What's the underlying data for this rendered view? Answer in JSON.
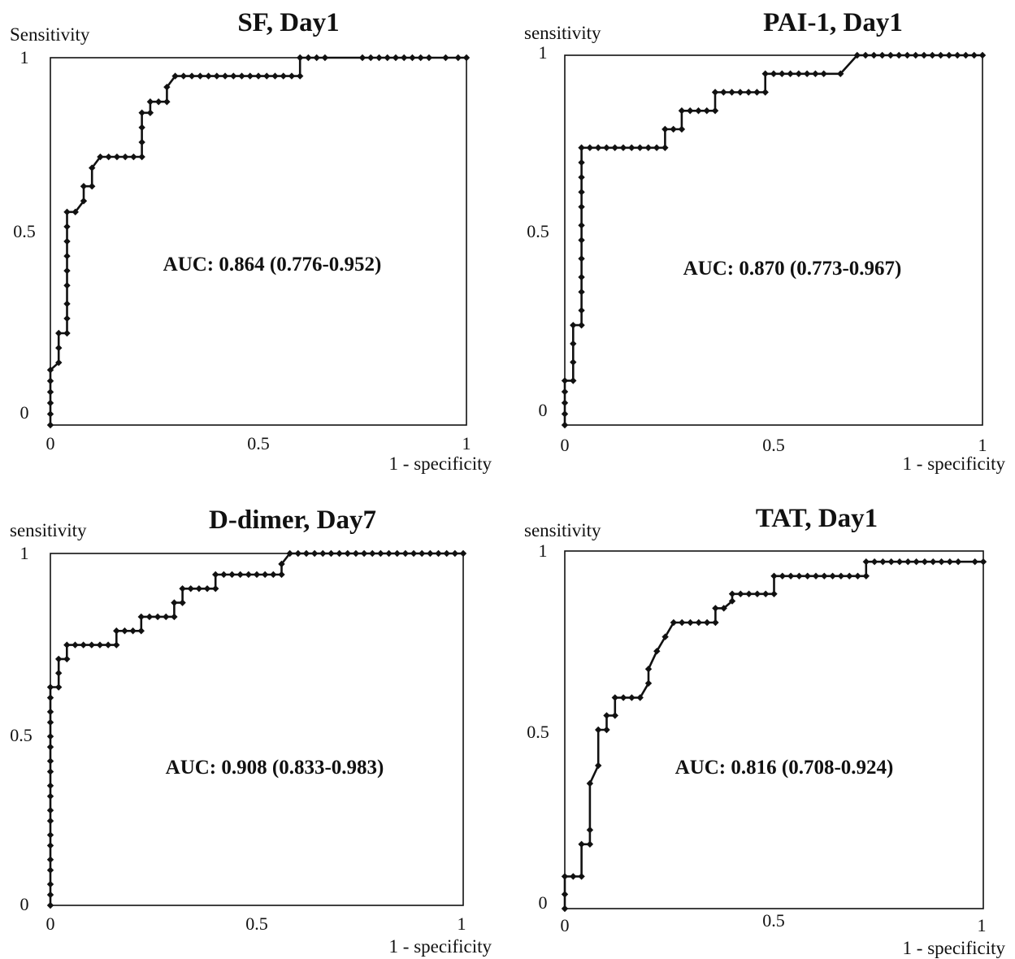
{
  "chart_data": [
    {
      "type": "line",
      "title": "SF, Day1",
      "ylabel": "Sensitivity",
      "xlabel": "1 - specificity",
      "annotation": "AUC: 0.864 (0.776-0.952)",
      "xlim": [
        0,
        1
      ],
      "ylim": [
        0,
        1
      ],
      "x_ticks": [
        "0",
        "0.5",
        "1"
      ],
      "y_ticks": [
        "0",
        "0.5",
        "1"
      ],
      "series": [
        {
          "x": [
            0,
            0,
            0,
            0,
            0,
            0,
            0.02,
            0.02,
            0.02,
            0.04,
            0.04,
            0.04,
            0.04,
            0.04,
            0.04,
            0.04,
            0.04,
            0.04,
            0.06,
            0.08,
            0.08,
            0.1,
            0.1,
            0.12,
            0.14,
            0.16,
            0.18,
            0.2,
            0.22,
            0.22,
            0.22,
            0.22,
            0.24,
            0.24,
            0.26,
            0.28,
            0.28,
            0.3,
            0.32,
            0.34,
            0.36,
            0.38,
            0.4,
            0.42,
            0.44,
            0.46,
            0.48,
            0.5,
            0.52,
            0.54,
            0.56,
            0.58,
            0.6,
            0.6,
            0.62,
            0.64,
            0.66,
            0.75,
            0.77,
            0.79,
            0.81,
            0.83,
            0.85,
            0.87,
            0.89,
            0.91,
            0.95,
            0.98,
            1
          ],
          "y": [
            0,
            0.03,
            0.06,
            0.09,
            0.12,
            0.15,
            0.17,
            0.21,
            0.25,
            0.25,
            0.29,
            0.33,
            0.38,
            0.42,
            0.46,
            0.5,
            0.54,
            0.58,
            0.58,
            0.61,
            0.65,
            0.65,
            0.7,
            0.73,
            0.73,
            0.73,
            0.73,
            0.73,
            0.73,
            0.77,
            0.81,
            0.85,
            0.85,
            0.88,
            0.88,
            0.88,
            0.92,
            0.95,
            0.95,
            0.95,
            0.95,
            0.95,
            0.95,
            0.95,
            0.95,
            0.95,
            0.95,
            0.95,
            0.95,
            0.95,
            0.95,
            0.95,
            0.95,
            1,
            1,
            1,
            1,
            1,
            1,
            1,
            1,
            1,
            1,
            1,
            1,
            1,
            1,
            1,
            1
          ]
        }
      ]
    },
    {
      "type": "line",
      "title": "PAI-1, Day1",
      "ylabel": "sensitivity",
      "xlabel": "1 - specificity",
      "annotation": "AUC: 0.870 (0.773-0.967)",
      "xlim": [
        0,
        1
      ],
      "ylim": [
        0,
        1
      ],
      "x_ticks": [
        "0",
        "0.5",
        "1"
      ],
      "y_ticks": [
        "0",
        "0.5",
        "1"
      ],
      "series": [
        {
          "x": [
            0,
            0,
            0,
            0,
            0,
            0.02,
            0.02,
            0.02,
            0.02,
            0.04,
            0.04,
            0.04,
            0.04,
            0.04,
            0.04,
            0.04,
            0.04,
            0.04,
            0.04,
            0.04,
            0.04,
            0.06,
            0.08,
            0.1,
            0.12,
            0.14,
            0.16,
            0.18,
            0.2,
            0.22,
            0.24,
            0.24,
            0.26,
            0.28,
            0.28,
            0.3,
            0.32,
            0.34,
            0.36,
            0.36,
            0.38,
            0.4,
            0.42,
            0.44,
            0.46,
            0.48,
            0.48,
            0.5,
            0.52,
            0.54,
            0.56,
            0.58,
            0.6,
            0.62,
            0.66,
            0.7,
            0.72,
            0.74,
            0.76,
            0.78,
            0.8,
            0.82,
            0.84,
            0.86,
            0.88,
            0.9,
            0.92,
            0.94,
            0.96,
            0.98,
            1
          ],
          "y": [
            0,
            0.03,
            0.06,
            0.09,
            0.12,
            0.12,
            0.17,
            0.22,
            0.27,
            0.27,
            0.31,
            0.36,
            0.4,
            0.45,
            0.5,
            0.54,
            0.59,
            0.63,
            0.67,
            0.71,
            0.75,
            0.75,
            0.75,
            0.75,
            0.75,
            0.75,
            0.75,
            0.75,
            0.75,
            0.75,
            0.75,
            0.8,
            0.8,
            0.8,
            0.85,
            0.85,
            0.85,
            0.85,
            0.85,
            0.9,
            0.9,
            0.9,
            0.9,
            0.9,
            0.9,
            0.9,
            0.95,
            0.95,
            0.95,
            0.95,
            0.95,
            0.95,
            0.95,
            0.95,
            0.95,
            1,
            1,
            1,
            1,
            1,
            1,
            1,
            1,
            1,
            1,
            1,
            1,
            1,
            1,
            1,
            1
          ]
        }
      ]
    },
    {
      "type": "line",
      "title": "D-dimer, Day7",
      "ylabel": "sensitivity",
      "xlabel": "1 - specificity",
      "annotation": "AUC: 0.908 (0.833-0.983)",
      "xlim": [
        0,
        1
      ],
      "ylim": [
        0,
        1
      ],
      "x_ticks": [
        "0",
        "0.5",
        "1"
      ],
      "y_ticks": [
        "0",
        "0.5",
        "1"
      ],
      "series": [
        {
          "x": [
            0,
            0,
            0,
            0,
            0,
            0,
            0,
            0,
            0,
            0,
            0,
            0,
            0,
            0,
            0,
            0,
            0,
            0,
            0,
            0.02,
            0.02,
            0.02,
            0.04,
            0.04,
            0.06,
            0.08,
            0.1,
            0.12,
            0.14,
            0.16,
            0.16,
            0.18,
            0.2,
            0.22,
            0.22,
            0.24,
            0.26,
            0.28,
            0.3,
            0.3,
            0.32,
            0.32,
            0.34,
            0.36,
            0.38,
            0.4,
            0.4,
            0.42,
            0.44,
            0.46,
            0.48,
            0.5,
            0.52,
            0.54,
            0.56,
            0.56,
            0.58,
            0.6,
            0.62,
            0.64,
            0.66,
            0.68,
            0.7,
            0.72,
            0.74,
            0.76,
            0.78,
            0.8,
            0.82,
            0.84,
            0.86,
            0.88,
            0.9,
            0.92,
            0.94,
            0.96,
            0.98,
            1
          ],
          "y": [
            0,
            0.03,
            0.06,
            0.1,
            0.13,
            0.17,
            0.2,
            0.24,
            0.27,
            0.31,
            0.34,
            0.38,
            0.41,
            0.45,
            0.48,
            0.52,
            0.55,
            0.59,
            0.62,
            0.62,
            0.66,
            0.7,
            0.7,
            0.74,
            0.74,
            0.74,
            0.74,
            0.74,
            0.74,
            0.74,
            0.78,
            0.78,
            0.78,
            0.78,
            0.82,
            0.82,
            0.82,
            0.82,
            0.82,
            0.86,
            0.86,
            0.9,
            0.9,
            0.9,
            0.9,
            0.9,
            0.94,
            0.94,
            0.94,
            0.94,
            0.94,
            0.94,
            0.94,
            0.94,
            0.94,
            0.97,
            1,
            1,
            1,
            1,
            1,
            1,
            1,
            1,
            1,
            1,
            1,
            1,
            1,
            1,
            1,
            1,
            1,
            1,
            1,
            1,
            1,
            1
          ]
        }
      ]
    },
    {
      "type": "line",
      "title": "TAT, Day1",
      "ylabel": "sensitivity",
      "xlabel": "1 - specificity",
      "annotation": "AUC: 0.816 (0.708-0.924)",
      "xlim": [
        0,
        1
      ],
      "ylim": [
        0,
        1
      ],
      "x_ticks": [
        "0",
        "0.5",
        "1"
      ],
      "y_ticks": [
        "0",
        "0.5",
        "1"
      ],
      "series": [
        {
          "x": [
            0,
            0,
            0,
            0.02,
            0.04,
            0.04,
            0.06,
            0.06,
            0.06,
            0.08,
            0.08,
            0.1,
            0.1,
            0.12,
            0.12,
            0.14,
            0.16,
            0.18,
            0.2,
            0.2,
            0.22,
            0.24,
            0.26,
            0.28,
            0.3,
            0.32,
            0.34,
            0.36,
            0.36,
            0.38,
            0.4,
            0.4,
            0.42,
            0.44,
            0.46,
            0.48,
            0.5,
            0.5,
            0.52,
            0.54,
            0.56,
            0.58,
            0.6,
            0.62,
            0.64,
            0.66,
            0.68,
            0.7,
            0.72,
            0.72,
            0.74,
            0.76,
            0.78,
            0.8,
            0.82,
            0.84,
            0.86,
            0.88,
            0.9,
            0.92,
            0.94,
            0.98,
            1
          ],
          "y": [
            0,
            0.04,
            0.09,
            0.09,
            0.09,
            0.18,
            0.18,
            0.22,
            0.35,
            0.4,
            0.5,
            0.5,
            0.54,
            0.54,
            0.59,
            0.59,
            0.59,
            0.59,
            0.63,
            0.67,
            0.72,
            0.76,
            0.8,
            0.8,
            0.8,
            0.8,
            0.8,
            0.8,
            0.84,
            0.84,
            0.86,
            0.88,
            0.88,
            0.88,
            0.88,
            0.88,
            0.88,
            0.93,
            0.93,
            0.93,
            0.93,
            0.93,
            0.93,
            0.93,
            0.93,
            0.93,
            0.93,
            0.93,
            0.93,
            0.97,
            0.97,
            0.97,
            0.97,
            0.97,
            0.97,
            0.97,
            0.97,
            0.97,
            0.97,
            0.97,
            0.97,
            0.97,
            0.97
          ]
        }
      ]
    }
  ]
}
